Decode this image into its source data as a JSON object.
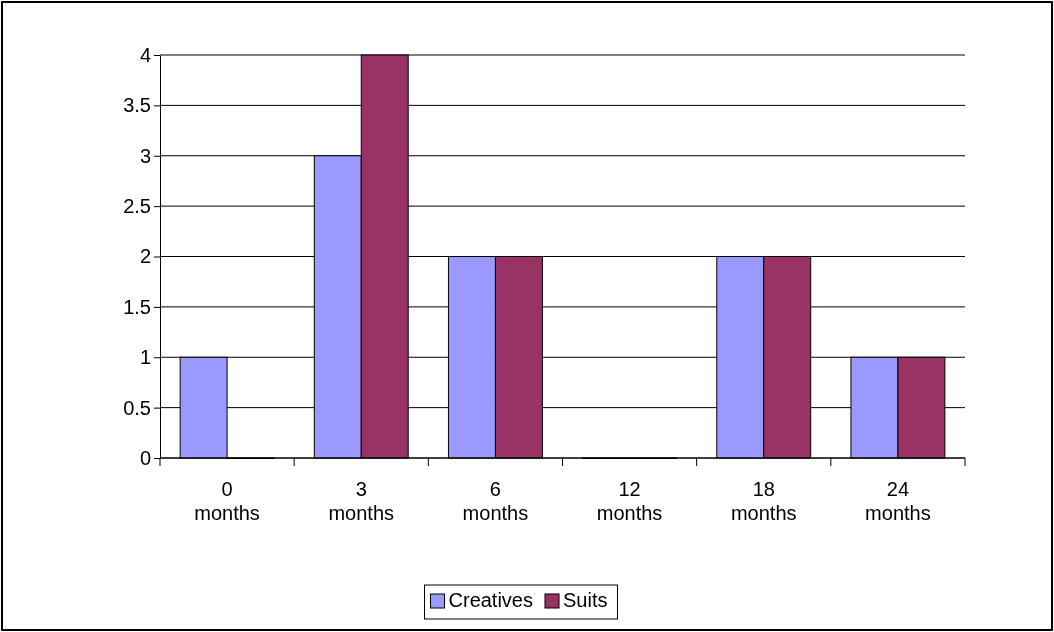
{
  "chart_data": {
    "type": "bar",
    "categories": [
      "0 months",
      "3 months",
      "6 months",
      "12 months",
      "18 months",
      "24 months"
    ],
    "series": [
      {
        "name": "Creatives",
        "color": "#9999ff",
        "values": [
          1,
          3,
          2,
          0,
          2,
          1
        ]
      },
      {
        "name": "Suits",
        "color": "#993366",
        "values": [
          0,
          4,
          2,
          0,
          2,
          1
        ]
      }
    ],
    "ylim": [
      0,
      4
    ],
    "yticks": [
      0,
      0.5,
      1,
      1.5,
      2,
      2.5,
      3,
      3.5,
      4
    ],
    "grid": "y",
    "legend": "bottom"
  }
}
